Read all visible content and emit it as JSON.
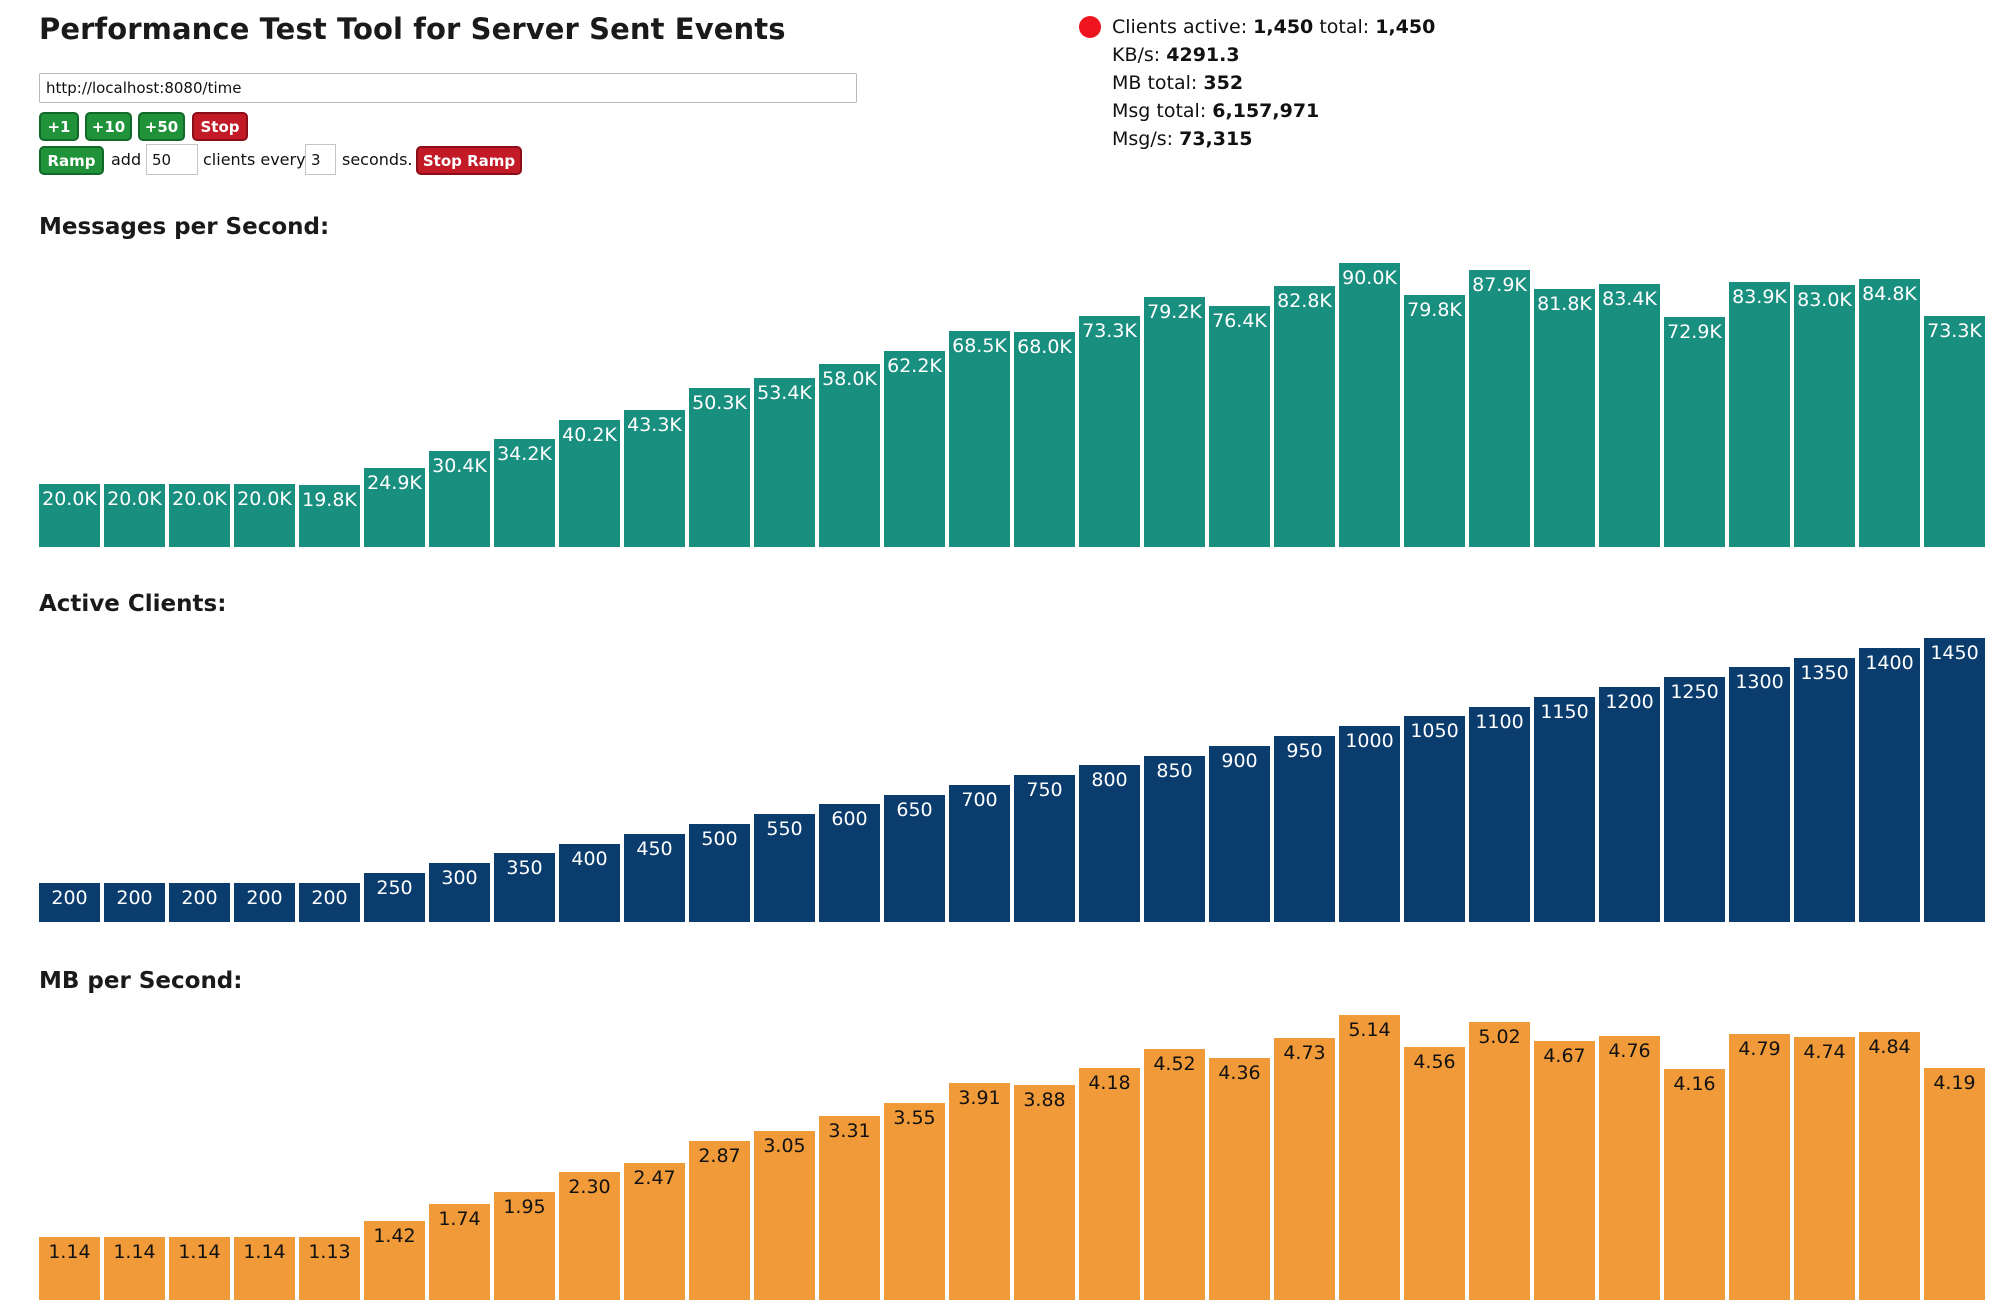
{
  "title": "Performance Test Tool for Server Sent Events",
  "url": {
    "value": "http://localhost:8080/time"
  },
  "buttons": {
    "plus1": "+1",
    "plus10": "+10",
    "plus50": "+50",
    "stop": "Stop",
    "ramp": "Ramp",
    "stop_ramp": "Stop Ramp"
  },
  "ramp": {
    "add_label": "add",
    "add_value": "50",
    "clients_every_label": "clients every",
    "interval_value": "3",
    "seconds_label": "seconds."
  },
  "stats": {
    "clients_active_label": "Clients active:",
    "clients_active": "1,450",
    "total_label": "total:",
    "clients_total": "1,450",
    "kbs_label": "KB/s:",
    "kbs": "4291.3",
    "mb_total_label": "MB total:",
    "mb_total": "352",
    "msg_total_label": "Msg total:",
    "msg_total": "6,157,971",
    "msgs_label": "Msg/s:",
    "msgs": "73,315",
    "status_color": "#f0141e"
  },
  "sections": {
    "messages": "Messages per Second:",
    "clients": "Active Clients:",
    "mb": "MB per Second:"
  },
  "chart_data": [
    {
      "type": "bar",
      "title": "Messages per Second:",
      "color": "#198f7f",
      "label_color": "#ffffff",
      "values": [
        20.0,
        20.0,
        20.0,
        20.0,
        19.8,
        24.9,
        30.4,
        34.2,
        40.2,
        43.3,
        50.3,
        53.4,
        58.0,
        62.2,
        68.5,
        68.0,
        73.3,
        79.2,
        76.4,
        82.8,
        90.0,
        79.8,
        87.9,
        81.8,
        83.4,
        72.9,
        83.9,
        83.0,
        84.8,
        73.3
      ],
      "labels": [
        "20.0K",
        "20.0K",
        "20.0K",
        "20.0K",
        "19.8K",
        "24.9K",
        "30.4K",
        "34.2K",
        "40.2K",
        "43.3K",
        "50.3K",
        "53.4K",
        "58.0K",
        "62.2K",
        "68.5K",
        "68.0K",
        "73.3K",
        "79.2K",
        "76.4K",
        "82.8K",
        "90.0K",
        "79.8K",
        "87.9K",
        "81.8K",
        "83.4K",
        "72.9K",
        "83.9K",
        "83.0K",
        "84.8K",
        "73.3K"
      ]
    },
    {
      "type": "bar",
      "title": "Active Clients:",
      "color": "#0a3c6e",
      "label_color": "#ffffff",
      "values": [
        200,
        200,
        200,
        200,
        200,
        250,
        300,
        350,
        400,
        450,
        500,
        550,
        600,
        650,
        700,
        750,
        800,
        850,
        900,
        950,
        1000,
        1050,
        1100,
        1150,
        1200,
        1250,
        1300,
        1350,
        1400,
        1450
      ],
      "labels": [
        "200",
        "200",
        "200",
        "200",
        "200",
        "250",
        "300",
        "350",
        "400",
        "450",
        "500",
        "550",
        "600",
        "650",
        "700",
        "750",
        "800",
        "850",
        "900",
        "950",
        "1000",
        "1050",
        "1100",
        "1150",
        "1200",
        "1250",
        "1300",
        "1350",
        "1400",
        "1450"
      ]
    },
    {
      "type": "bar",
      "title": "MB per Second:",
      "color": "#f09a3a",
      "label_color": "#111111",
      "values": [
        1.14,
        1.14,
        1.14,
        1.14,
        1.13,
        1.42,
        1.74,
        1.95,
        2.3,
        2.47,
        2.87,
        3.05,
        3.31,
        3.55,
        3.91,
        3.88,
        4.18,
        4.52,
        4.36,
        4.73,
        5.14,
        4.56,
        5.02,
        4.67,
        4.76,
        4.16,
        4.79,
        4.74,
        4.84,
        4.19
      ],
      "labels": [
        "1.14",
        "1.14",
        "1.14",
        "1.14",
        "1.13",
        "1.42",
        "1.74",
        "1.95",
        "2.30",
        "2.47",
        "2.87",
        "3.05",
        "3.31",
        "3.55",
        "3.91",
        "3.88",
        "4.18",
        "4.52",
        "4.36",
        "4.73",
        "5.14",
        "4.56",
        "5.02",
        "4.67",
        "4.76",
        "4.16",
        "4.79",
        "4.74",
        "4.84",
        "4.19"
      ]
    }
  ]
}
